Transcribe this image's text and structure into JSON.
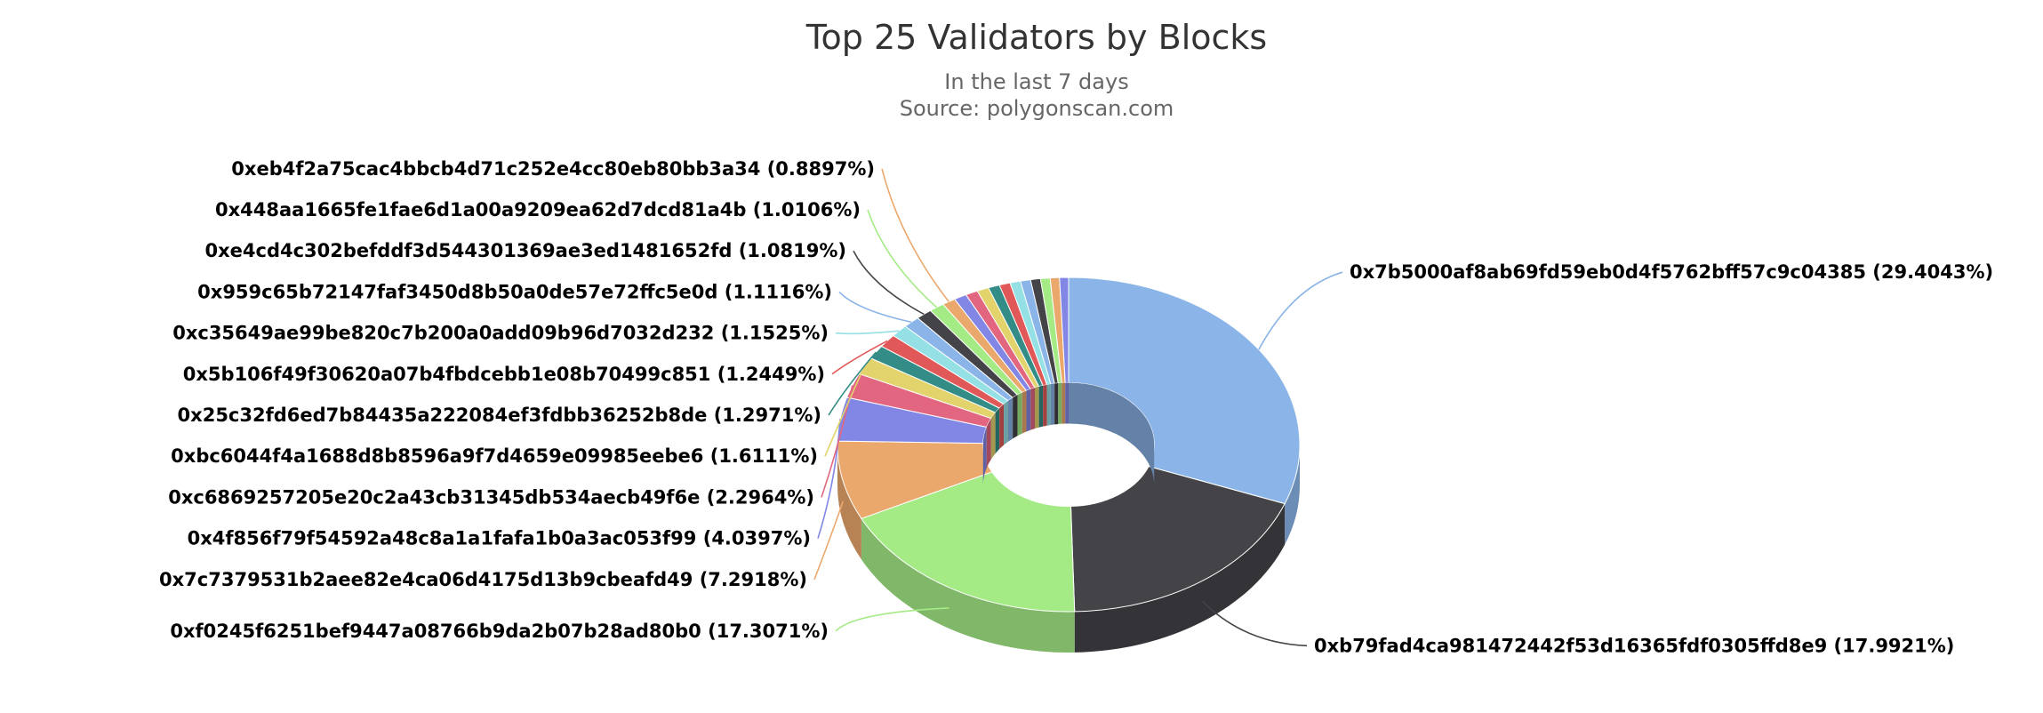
{
  "chart_data": {
    "type": "pie",
    "title": "Top 25 Validators by Blocks",
    "subtitle": "In the last 7 days",
    "source": "Source: polygonscan.com",
    "unit": "%",
    "slices": [
      {
        "name": "0x7b5000af8ab69fd59eb0d4f5762bff57c9c04385",
        "value": 29.4043,
        "color": "#8bb5e8"
      },
      {
        "name": "0xb79fad4ca981472442f53d16365fdf0305ffd8e9",
        "value": 17.9921,
        "color": "#434348"
      },
      {
        "name": "0xf0245f6251bef9447a08766b9da2b07b28ad80b0",
        "value": 17.3071,
        "color": "#a4eb86"
      },
      {
        "name": "0x7c7379531b2aee82e4ca06d4175d13b9cbeafd49",
        "value": 7.2918,
        "color": "#eba86d"
      },
      {
        "name": "0x4f856f79f54592a48c8a1a1fafa1b0a3ac053f99",
        "value": 4.0397,
        "color": "#8287e6"
      },
      {
        "name": "0xc6869257205e20c2a43cb31345db534aecb49f6e",
        "value": 2.2964,
        "color": "#e26680"
      },
      {
        "name": "0xbc6044f4a1688d8b8596a9f7d4659e09985eebe6",
        "value": 1.6111,
        "color": "#e2d36c"
      },
      {
        "name": "0x25c32fd6ed7b84435a222084ef3fdbb36252b8de",
        "value": 1.2971,
        "color": "#338c85"
      },
      {
        "name": "0x5b106f49f30620a07b4fbdcebb1e08b70499c851",
        "value": 1.2449,
        "color": "#e15858"
      },
      {
        "name": "0xc35649ae99be820c7b200a0add09b96d7032d232",
        "value": 1.1525,
        "color": "#94e0e4"
      },
      {
        "name": "0x959c65b72147faf3450d8b50a0de57e72ffc5e0d",
        "value": 1.1116,
        "color": "#8bb5e8"
      },
      {
        "name": "0xe4cd4c302befddf3d544301369ae3ed1481652fd",
        "value": 1.0819,
        "color": "#434348"
      },
      {
        "name": "0x448aa1665fe1fae6d1a00a9209ea62d7dcd81a4b",
        "value": 1.0106,
        "color": "#a4eb86"
      },
      {
        "name": "0xeb4f2a75cac4bbcb4d71c252e4cc80eb80bb3a34",
        "value": 0.8897,
        "color": "#eba86d"
      },
      {
        "name": "",
        "value": 0.85,
        "color": "#8287e6"
      },
      {
        "name": "",
        "value": 0.82,
        "color": "#e26680"
      },
      {
        "name": "",
        "value": 0.79,
        "color": "#e2d36c"
      },
      {
        "name": "",
        "value": 0.76,
        "color": "#338c85"
      },
      {
        "name": "",
        "value": 0.73,
        "color": "#e15858"
      },
      {
        "name": "",
        "value": 0.7,
        "color": "#94e0e4"
      },
      {
        "name": "",
        "value": 0.68,
        "color": "#8bb5e8"
      },
      {
        "name": "",
        "value": 0.66,
        "color": "#434348"
      },
      {
        "name": "",
        "value": 0.64,
        "color": "#a4eb86"
      },
      {
        "name": "",
        "value": 0.62,
        "color": "#eba86d"
      },
      {
        "name": "",
        "value": 0.6,
        "color": "#8287e6"
      }
    ],
    "inner_radius_ratio": 0.37,
    "three_d": true,
    "legend": "none",
    "data_labels": "outside-with-connectors"
  }
}
